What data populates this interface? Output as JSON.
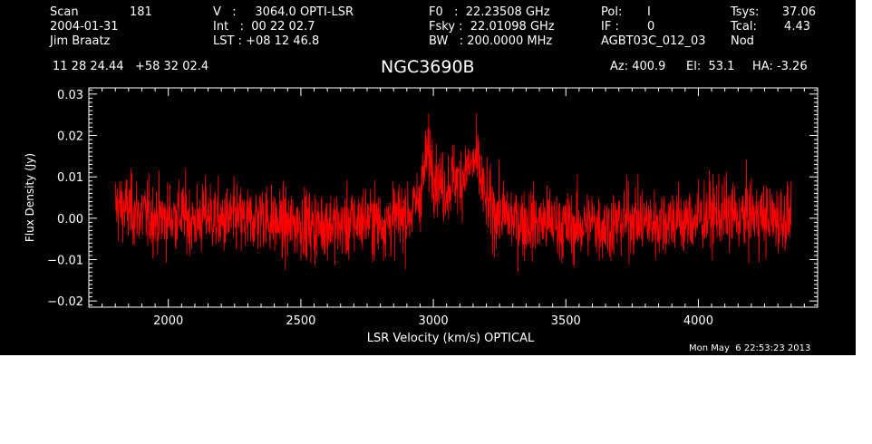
{
  "header": {
    "scan_label": "Scan",
    "scan_value": "181",
    "date": "2004-01-31",
    "observer": "Jim Braatz",
    "velocity": "V   :     3064.0 OPTI-LSR",
    "int": "Int   :  00 22 02.7",
    "lst": "LST : +08 12 46.8",
    "f0": "F0   :  22.23508 GHz",
    "fsky": "Fsky :  22.01098 GHz",
    "bw": "BW   : 200.0000 MHz",
    "pol_label": "Pol:",
    "pol_value": "I",
    "if_label": "IF :",
    "if_value": "0",
    "project": "AGBT03C_012_03",
    "tsys_label": "Tsys:",
    "tsys_value": "37.06",
    "tcal_label": "Tcal:",
    "tcal_value": "4.43",
    "procedure": "Nod",
    "coordinates": "11 28 24.44   +58 32 02.4",
    "source": "NGC3690B",
    "az": "Az: 400.9",
    "el": "El:  53.1",
    "ha": "HA: -3.26"
  },
  "footer": {
    "timestamp": "Mon May  6 22:53:23 2013"
  },
  "colors": {
    "background": "#000000",
    "axes": "#ffffff",
    "series": "#ff0000"
  },
  "chart_data": {
    "type": "line",
    "xlabel": "LSR Velocity (km/s) OPTICAL",
    "ylabel": "Flux Density (Jy)",
    "xlim": [
      1700,
      4450
    ],
    "ylim": [
      -0.0215,
      0.0315
    ],
    "xticks": [
      2000,
      2500,
      3000,
      3500,
      4000
    ],
    "xtick_labels": [
      "2000",
      "2500",
      "3000",
      "3500",
      "4000"
    ],
    "yticks": [
      -0.02,
      -0.01,
      0.0,
      0.01,
      0.02,
      0.03
    ],
    "ytick_labels": [
      "−0.02",
      "−0.01",
      "0.00",
      "0.01",
      "0.02",
      "0.03"
    ],
    "grid": false,
    "series": [
      {
        "x": [
          1800,
          1850,
          1900,
          1950,
          2000,
          2050,
          2100,
          2150,
          2200,
          2250,
          2300,
          2350,
          2400,
          2450,
          2500,
          2550,
          2600,
          2650,
          2700,
          2750,
          2800,
          2850,
          2900,
          2925,
          2950,
          2960,
          2970,
          2980,
          2990,
          3000,
          3025,
          3050,
          3075,
          3100,
          3125,
          3150,
          3160,
          3170,
          3180,
          3190,
          3200,
          3225,
          3250,
          3300,
          3350,
          3400,
          3450,
          3500,
          3550,
          3600,
          3650,
          3700,
          3750,
          3800,
          3850,
          3900,
          3950,
          4000,
          4050,
          4100,
          4150,
          4200,
          4250,
          4300,
          4350
        ],
        "y": [
          0.003,
          0.002,
          0.001,
          0.0,
          0.0,
          0.001,
          -0.001,
          0.001,
          -0.001,
          0.0,
          -0.001,
          0.001,
          -0.001,
          -0.002,
          -0.001,
          -0.002,
          -0.001,
          -0.002,
          -0.001,
          0.0,
          -0.001,
          0.0,
          0.001,
          0.002,
          0.006,
          0.009,
          0.013,
          0.016,
          0.014,
          0.012,
          0.008,
          0.007,
          0.01,
          0.009,
          0.012,
          0.013,
          0.014,
          0.012,
          0.009,
          0.006,
          0.004,
          0.002,
          0.001,
          0.0,
          -0.001,
          -0.001,
          -0.001,
          -0.002,
          -0.002,
          -0.001,
          -0.002,
          -0.001,
          0.0,
          -0.001,
          -0.001,
          0.0,
          -0.001,
          0.0,
          0.001,
          0.001,
          0.0,
          0.001,
          0.0,
          0.0,
          0.0
        ],
        "noise_rms": 0.0042,
        "x_step": 1.1
      }
    ]
  }
}
